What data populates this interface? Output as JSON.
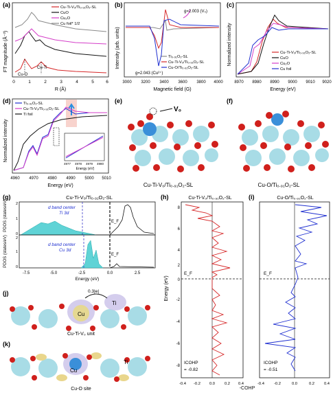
{
  "panels": {
    "a": {
      "label": "(a)",
      "ylabel": "FT magnitude (Å⁻³)",
      "xlabel": "R (Å)",
      "xticks": [
        "0",
        "1",
        "2",
        "3",
        "4",
        "5",
        "6"
      ],
      "legend": [
        "Cu-Ti-V₀/Ti₀.₉₁O₂-SL",
        "CuO",
        "Cu₂O",
        "Cu foil* 1/2"
      ],
      "annotations": [
        "Cu-O",
        "Cu-Ti"
      ]
    },
    "b": {
      "label": "(b)",
      "ylabel": "Intensity (arb. units)",
      "xlabel": "Magnetic field (G)",
      "xticks": [
        "3000",
        "3200",
        "3400",
        "3600",
        "3800",
        "4000"
      ],
      "legend": [
        "Ti₀.₉₁O₂-SL",
        "Cu-Ti-V₀/Ti₀.₉₁O₂-SL",
        "Cu-O/Ti₀.₉₁O₂-SL"
      ],
      "annotations": [
        "g=2.003 (V₀)",
        "g=2.043 (Cu²⁺)"
      ]
    },
    "c": {
      "label": "(c)",
      "ylabel": "Normalized intensity",
      "xlabel": "Energy (eV)",
      "xticks": [
        "8970",
        "8980",
        "8990",
        "9000",
        "9010",
        "9020"
      ],
      "legend": [
        "Cu-Ti-V₀/Ti₀.₉₁O₂-SL",
        "CuO",
        "Cu₂O",
        "Cu foil"
      ]
    },
    "d": {
      "label": "(d)",
      "ylabel": "Normalized intensity",
      "xlabel": "Energy (eV)",
      "xticks": [
        "4960",
        "4970",
        "4980",
        "4990",
        "5000",
        "5010"
      ],
      "legend": [
        "Ti₀.₉₁O₂-SL",
        "Cu-Ti-V₀/Ti₀.₉₁O₂-SL",
        "Ti foil"
      ],
      "inset_xticks": [
        "4977",
        "4978",
        "4979",
        "4980"
      ],
      "inset_xlabel": "Energy (eV)"
    },
    "e": {
      "label": "(e)",
      "caption": "Cu-Ti-V₀/Ti₀.₉₁O₂-SL",
      "vo": "V₀"
    },
    "f": {
      "label": "(f)",
      "caption": "Cu-O/Ti₀.₉₁O₂-SL"
    },
    "g": {
      "label": "(g)",
      "title": "Cu-Ti-V₀/Ti₀.₉₁O₂-SL",
      "ylabel": "PDOS (states/eV)",
      "xlabel": "Energy (eV)",
      "top_yticks": [
        "2",
        "1",
        "0"
      ],
      "bottom_yticks": [
        "2",
        "1",
        "0"
      ],
      "xticks": [
        "-7.5",
        "-5.0",
        "-2.5",
        "0.0",
        "2.5"
      ],
      "top_note1": "d band center",
      "top_note2": "Ti 3d",
      "bottom_note1": "d band center",
      "bottom_note2": "Cu 3d",
      "ef": "E_F"
    },
    "h": {
      "label": "(h)",
      "title": "Cu-Ti-V₀/Ti₀.₉₁O₂-SL",
      "ylabel": "Energy (eV)",
      "yticks": [
        "8",
        "6",
        "4",
        "2",
        "0",
        "-2",
        "-4",
        "-6",
        "-8"
      ],
      "xticks": [
        "-0.4",
        "-0.2",
        "0.0",
        "0.2",
        "0.4"
      ],
      "ef": "E_F",
      "icohp_label": "ICOHP",
      "icohp_value": "= -0.82"
    },
    "i": {
      "label": "(i)",
      "title": "Cu-O/Ti₀.₉₁O₂-SL",
      "xticks": [
        "-0.4",
        "-0.2",
        "0.0",
        "0.2",
        "0.4"
      ],
      "ef": "E_F",
      "icohp_label": "ICOHP",
      "icohp_value": "= -0.51"
    },
    "cohp_xlabel": "-COHP",
    "j": {
      "label": "(j)",
      "caption": "Cu-Ti-V₀ unit",
      "charge": "0.3|e|",
      "cu": "Cu",
      "ti": "Ti"
    },
    "k": {
      "label": "(k)",
      "caption": "Cu-O site",
      "cu": "Cu",
      "ti": "Ti"
    }
  },
  "colors": {
    "red": "#d62728",
    "black": "#111111",
    "magenta": "#d43cc8",
    "blue": "#1f2fd0",
    "cyan": "#5fd3d6",
    "pink": "#f6c8c0"
  },
  "chart_data": [
    {
      "type": "line",
      "title": "",
      "xlabel": "R (Å)",
      "ylabel": "FT magnitude (Å⁻³)",
      "x_range": [
        0,
        6
      ],
      "series": [
        {
          "name": "Cu-Ti-V₀/Ti₀.₉₁O₂-SL",
          "x": [
            0.5,
            1,
            1.5,
            2,
            2.5,
            3,
            3.5,
            4,
            5,
            6
          ],
          "y": [
            0.2,
            0.8,
            1.6,
            0.6,
            1.1,
            0.7,
            0.4,
            0.3,
            0.2,
            0.1
          ]
        },
        {
          "name": "CuO",
          "x": [
            0.5,
            1,
            1.5,
            2,
            2.5,
            3,
            3.5,
            4,
            5,
            6
          ],
          "y": [
            0.3,
            1.2,
            2.3,
            1.5,
            1.7,
            1.5,
            1.2,
            1.0,
            0.8,
            0.7
          ]
        },
        {
          "name": "Cu₂O",
          "x": [
            0.5,
            1,
            1.5,
            2,
            2.5,
            3,
            3.5,
            4,
            5,
            6
          ],
          "y": [
            0.2,
            0.6,
            1.2,
            1.8,
            1.4,
            1.2,
            1.3,
            1.1,
            0.9,
            0.8
          ]
        },
        {
          "name": "Cu foil* 1/2",
          "x": [
            0.5,
            1,
            1.5,
            2,
            2.5,
            3,
            3.5,
            4,
            5,
            6
          ],
          "y": [
            0.4,
            0.9,
            1.5,
            3.6,
            2.1,
            1.8,
            2.0,
            1.7,
            1.3,
            1.1
          ]
        }
      ]
    },
    {
      "type": "line",
      "title": "",
      "xlabel": "Magnetic field (G)",
      "ylabel": "Intensity (arb. units)",
      "x_range": [
        3000,
        4000
      ],
      "series": [
        {
          "name": "Ti₀.₉₁O₂-SL",
          "x": [
            3000,
            3300,
            3400,
            3460,
            3500,
            3600,
            4000
          ],
          "y": [
            0,
            0,
            0,
            0,
            0,
            0,
            0
          ]
        },
        {
          "name": "Cu-Ti-V₀/Ti₀.₉₁O₂-SL",
          "x": [
            3000,
            3300,
            3400,
            3460,
            3500,
            3600,
            4000
          ],
          "y": [
            0,
            0.1,
            -0.5,
            -1.2,
            0.6,
            0.1,
            0
          ]
        },
        {
          "name": "Cu-O/Ti₀.₉₁O₂-SL",
          "x": [
            3000,
            3300,
            3400,
            3460,
            3500,
            3600,
            4000
          ],
          "y": [
            0,
            0.2,
            -0.3,
            -2.5,
            1.0,
            0.2,
            0
          ]
        }
      ]
    },
    {
      "type": "line",
      "title": "",
      "xlabel": "Energy (eV)",
      "ylabel": "Normalized intensity",
      "x_range": [
        8970,
        9020
      ],
      "series": [
        {
          "name": "Cu-Ti-V₀/Ti₀.₉₁O₂-SL",
          "x": [
            8970,
            8980,
            8985,
            8990,
            8995,
            9000,
            9005,
            9010,
            9020
          ],
          "y": [
            0,
            0.05,
            0.3,
            0.7,
            1.0,
            1.15,
            1.05,
            1.0,
            1.0
          ]
        },
        {
          "name": "CuO",
          "x": [
            8970,
            8980,
            8985,
            8990,
            8995,
            9000,
            9005,
            9010,
            9020
          ],
          "y": [
            0,
            0.05,
            0.25,
            0.6,
            0.95,
            1.2,
            1.1,
            1.0,
            1.0
          ]
        },
        {
          "name": "Cu₂O",
          "x": [
            8970,
            8980,
            8985,
            8990,
            8995,
            9000,
            9005,
            9010,
            9020
          ],
          "y": [
            0,
            0.1,
            0.6,
            0.75,
            1.0,
            1.1,
            1.05,
            1.0,
            1.0
          ]
        },
        {
          "name": "Cu foil",
          "x": [
            8970,
            8980,
            8985,
            8990,
            8995,
            9000,
            9005,
            9010,
            9020
          ],
          "y": [
            0,
            0.2,
            0.65,
            0.8,
            0.9,
            1.05,
            1.0,
            1.0,
            1.0
          ]
        }
      ]
    },
    {
      "type": "line",
      "title": "",
      "xlabel": "Energy (eV)",
      "ylabel": "Normalized intensity",
      "x_range": [
        4960,
        5010
      ],
      "series": [
        {
          "name": "Ti₀.₉₁O₂-SL",
          "x": [
            4960,
            4965,
            4970,
            4975,
            4980,
            4985,
            4990,
            5000,
            5010
          ],
          "y": [
            0,
            0.05,
            0.3,
            0.5,
            0.9,
            1.2,
            1.1,
            1.0,
            1.0
          ]
        },
        {
          "name": "Cu-Ti-V₀/Ti₀.₉₁O₂-SL",
          "x": [
            4960,
            4965,
            4970,
            4975,
            4980,
            4985,
            4990,
            5000,
            5010
          ],
          "y": [
            0,
            0.05,
            0.28,
            0.48,
            0.88,
            1.25,
            1.1,
            1.0,
            1.0
          ]
        },
        {
          "name": "Ti foil",
          "x": [
            4960,
            4965,
            4970,
            4975,
            4980,
            4985,
            4990,
            5000,
            5010
          ],
          "y": [
            0,
            0.3,
            0.6,
            0.75,
            0.9,
            1.0,
            1.05,
            1.0,
            1.0
          ]
        }
      ]
    }
  ]
}
